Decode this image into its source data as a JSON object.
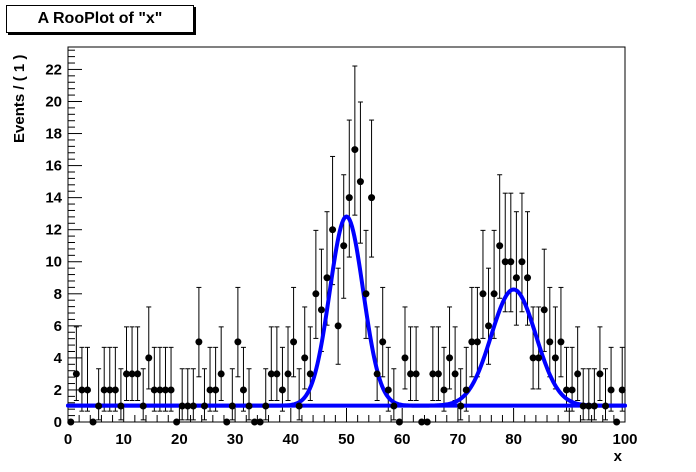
{
  "title": "A RooPlot of \"x\"",
  "chart_data": {
    "type": "scatter",
    "title": "A RooPlot of \"x\"",
    "xlabel": "x",
    "ylabel": "Events / ( 1 )",
    "xlim": [
      0,
      100
    ],
    "ylim": [
      0,
      23.4
    ],
    "x_major_ticks": [
      0,
      10,
      20,
      30,
      40,
      50,
      60,
      70,
      80,
      90,
      100
    ],
    "x_minor_step": 2,
    "y_major_ticks": [
      0,
      2,
      4,
      6,
      8,
      10,
      12,
      14,
      16,
      18,
      20,
      22
    ],
    "y_minor_step": 0.4,
    "grid": false,
    "legend": false,
    "bin_width": 1,
    "points_note": "100 bins, centers at 0.5..99.5; Poisson asymmetric error bars; no bar on zero bins",
    "counts": [
      0,
      3,
      2,
      2,
      0,
      1,
      2,
      2,
      2,
      1,
      3,
      3,
      3,
      1,
      4,
      2,
      2,
      2,
      2,
      0,
      1,
      1,
      1,
      5,
      1,
      2,
      2,
      3,
      0,
      1,
      5,
      2,
      1,
      0,
      0,
      1,
      3,
      3,
      2,
      3,
      5,
      1,
      4,
      3,
      8,
      7,
      9,
      12,
      6,
      11,
      14,
      17,
      15,
      8,
      14,
      3,
      5,
      2,
      1,
      0,
      4,
      3,
      3,
      0,
      0,
      3,
      3,
      2,
      4,
      3,
      1,
      2,
      5,
      5,
      8,
      6,
      8,
      11,
      10,
      10,
      9,
      10,
      9,
      4,
      4,
      7,
      5,
      4,
      5,
      2,
      2,
      3,
      1,
      1,
      1,
      3,
      1,
      2,
      0,
      2
    ],
    "marker_color": "#000000",
    "marker_radius": 3.5,
    "error_bar_color": "#000000",
    "curves": [
      {
        "name": "total-model",
        "color": "#0000ff",
        "line_width": 4,
        "background_level": 1.02,
        "gaussians": [
          {
            "mean": 50,
            "sigma": 3.0,
            "amplitude": 11.8
          },
          {
            "mean": 80,
            "sigma": 4.0,
            "amplitude": 7.25
          }
        ]
      },
      {
        "name": "background-component",
        "color": "#0000ff",
        "line_width": 4,
        "background_level": 1.02,
        "gaussians": []
      }
    ],
    "frame_color": "#000000",
    "background_color": "#ffffff"
  }
}
